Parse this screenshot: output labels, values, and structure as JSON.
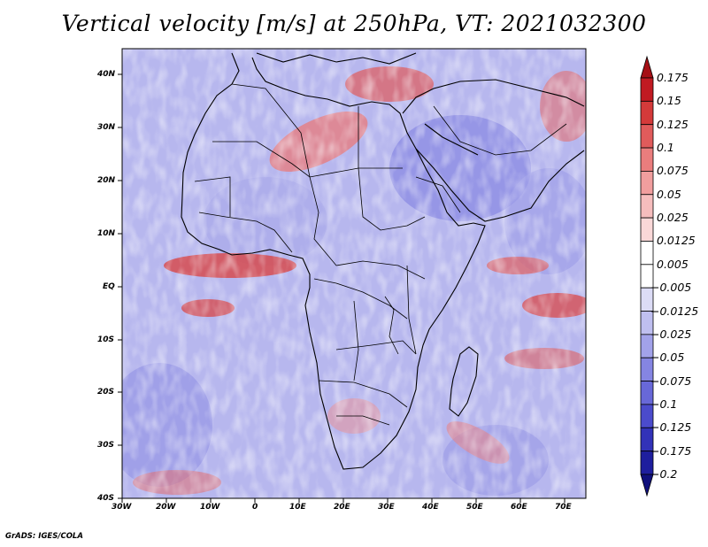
{
  "title": "Vertical velocity [m/s] at 250hPa, VT: 2021032300",
  "credit": "GrADS: IGES/COLA",
  "map": {
    "lat_labels": [
      "40N",
      "30N",
      "20N",
      "10N",
      "EQ",
      "10S",
      "20S",
      "30S",
      "40S"
    ],
    "lon_labels": [
      "30W",
      "20W",
      "10W",
      "0",
      "10E",
      "20E",
      "30E",
      "40E",
      "50E",
      "60E",
      "70E"
    ]
  },
  "colorbar": {
    "labels": [
      "0.175",
      "0.15",
      "0.125",
      "0.1",
      "0.075",
      "0.05",
      "0.025",
      "0.0125",
      "0.005",
      "−0.005",
      "−0.0125",
      "−0.025",
      "−0.05",
      "−0.075",
      "−0.1",
      "−0.125",
      "−0.175",
      "−0.2"
    ],
    "colors": [
      "#a50f15",
      "#c11a22",
      "#d43a3a",
      "#e05b5b",
      "#ea7d7d",
      "#f19e9e",
      "#f6bdbd",
      "#fad8d8",
      "#ffffff",
      "#ffffff",
      "#dcdcf6",
      "#bfbff0",
      "#a2a2ea",
      "#8585e2",
      "#6868d8",
      "#4b4bcc",
      "#3232b8",
      "#1e1e9e",
      "#10107c"
    ]
  }
}
